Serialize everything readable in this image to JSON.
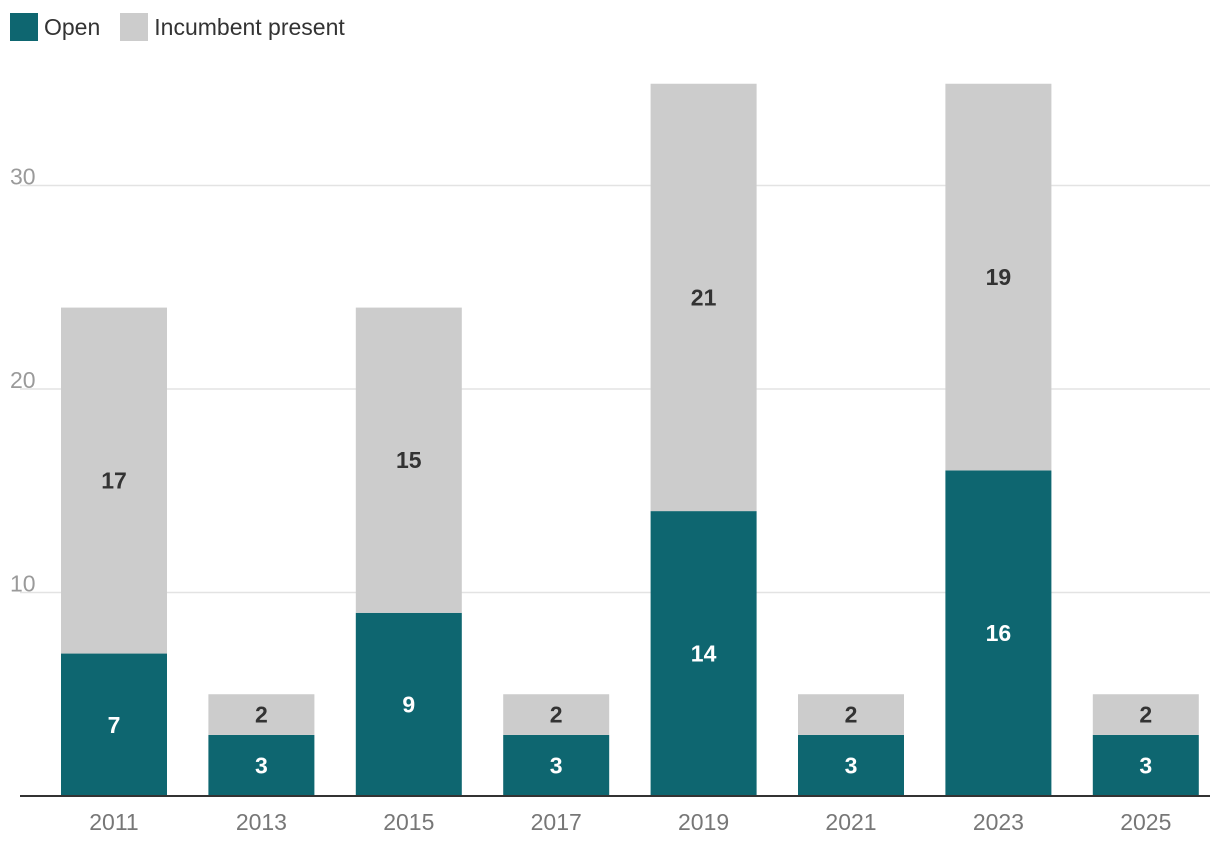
{
  "colors": {
    "open": "#0e6670",
    "incumbent": "#cccccc",
    "grid": "#e3e3e3",
    "axis": "#333333",
    "label_on_open": "#ffffff",
    "label_on_incumbent": "#333333"
  },
  "legend": {
    "items": [
      {
        "label": "Open",
        "color": "#0e6670"
      },
      {
        "label": "Incumbent present",
        "color": "#cccccc"
      }
    ]
  },
  "chart_data": {
    "type": "bar",
    "stacked": true,
    "categories": [
      "2011",
      "2013",
      "2015",
      "2017",
      "2019",
      "2021",
      "2023",
      "2025"
    ],
    "series": [
      {
        "name": "Open",
        "values": [
          7,
          3,
          9,
          3,
          14,
          3,
          16,
          3
        ]
      },
      {
        "name": "Incumbent present",
        "values": [
          17,
          2,
          15,
          2,
          21,
          2,
          19,
          2
        ]
      }
    ],
    "yticks": [
      10,
      20,
      30
    ],
    "ylim": [
      0,
      35
    ],
    "grid": true,
    "legend_position": "top-left",
    "title": "",
    "xlabel": "",
    "ylabel": ""
  }
}
